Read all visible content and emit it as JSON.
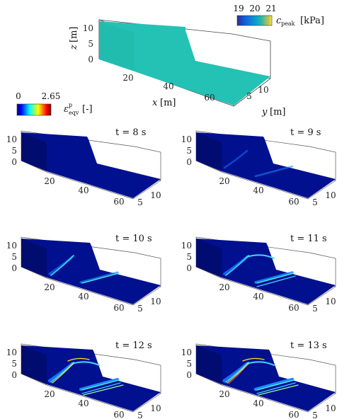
{
  "figure": {
    "top_panel": {
      "xlabel_var": "x",
      "xlabel_unit": "[m]",
      "ylabel_var": "y",
      "ylabel_unit": "[m]",
      "zlabel_var": "z",
      "zlabel_unit": "[m]",
      "colorbar": {
        "ticks": [
          "19",
          "20",
          "21"
        ],
        "label_var": "c",
        "label_sub": "peak",
        "label_unit": "[kPa]"
      }
    },
    "strain_colorbar": {
      "ticks": [
        "0",
        "2.65"
      ],
      "label_var": "ε",
      "label_sup": "p",
      "label_sub": "eqv",
      "label_unit": "[-]"
    }
  },
  "chart_data": [
    {
      "type": "3d-surface",
      "panel": "geometry",
      "x_ticks": [
        20,
        40,
        60
      ],
      "y_ticks": [
        5,
        10
      ],
      "z_ticks": [
        0,
        5,
        10
      ],
      "colors": {
        "fill": "#24c2b4"
      }
    },
    {
      "type": "3d-surface",
      "time_label": "t = 8 s",
      "x_ticks": [
        20,
        40,
        60
      ],
      "y_ticks": [
        5,
        10
      ],
      "z_ticks": [
        0,
        5,
        10
      ]
    },
    {
      "type": "3d-surface",
      "time_label": "t = 9 s",
      "x_ticks": [
        20,
        40,
        60
      ],
      "y_ticks": [
        5,
        10
      ],
      "z_ticks": [
        0,
        5,
        10
      ]
    },
    {
      "type": "3d-surface",
      "time_label": "t = 10 s",
      "x_ticks": [
        20,
        40,
        60
      ],
      "y_ticks": [
        5,
        10
      ],
      "z_ticks": [
        0,
        5,
        10
      ]
    },
    {
      "type": "3d-surface",
      "time_label": "t = 11 s",
      "x_ticks": [
        20,
        40,
        60
      ],
      "y_ticks": [
        5,
        10
      ],
      "z_ticks": [
        0,
        5,
        10
      ]
    },
    {
      "type": "3d-surface",
      "time_label": "t = 12 s",
      "x_ticks": [
        20,
        40,
        60
      ],
      "y_ticks": [
        5,
        10
      ],
      "z_ticks": [
        0,
        5,
        10
      ]
    },
    {
      "type": "3d-surface",
      "time_label": "t = 13 s",
      "x_ticks": [
        20,
        40,
        60
      ],
      "y_ticks": [
        5,
        10
      ],
      "z_ticks": [
        0,
        5,
        10
      ]
    }
  ]
}
